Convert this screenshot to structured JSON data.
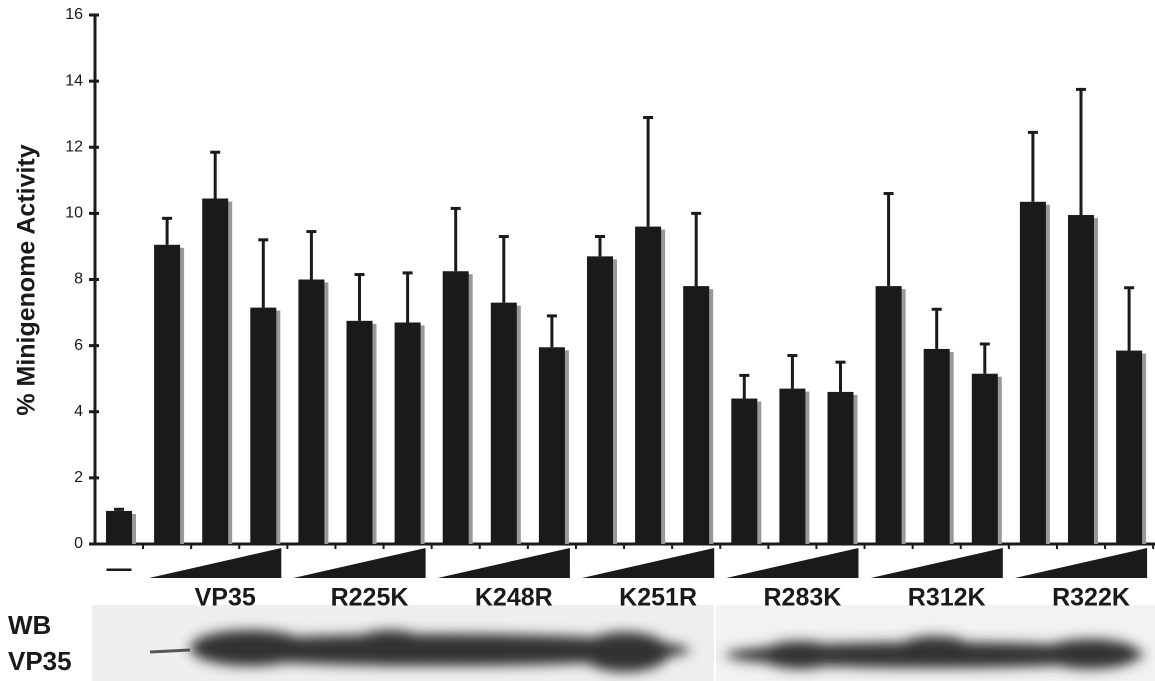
{
  "chart_data": {
    "type": "bar",
    "y_label": "% Minigenome Activity",
    "categories": [
      "—",
      null,
      null,
      null,
      null,
      null,
      null,
      null,
      null,
      null,
      null,
      null,
      null,
      null,
      null,
      null,
      null,
      null,
      null,
      null,
      null,
      null
    ],
    "groups": [
      "VP35",
      "R225K",
      "K248R",
      "K251R",
      "R283K",
      "R312K",
      "R322K"
    ],
    "values": [
      1.0,
      9.05,
      10.45,
      7.15,
      8.0,
      6.75,
      6.7,
      8.25,
      7.3,
      5.95,
      8.7,
      9.6,
      7.8,
      4.4,
      4.7,
      4.6,
      7.8,
      5.9,
      5.15,
      10.35,
      9.95,
      5.85
    ],
    "errors": [
      0.05,
      0.8,
      1.4,
      2.05,
      1.45,
      1.4,
      1.5,
      1.9,
      2.0,
      0.95,
      0.6,
      3.3,
      2.2,
      0.7,
      1.0,
      0.9,
      2.8,
      1.2,
      0.9,
      2.1,
      3.8,
      1.9
    ],
    "color": "#1a1a1a",
    "shadow_color": "#999999",
    "ylim": [
      0,
      16
    ],
    "yticks": [
      0,
      2,
      4,
      6,
      8,
      10,
      12,
      14,
      16
    ],
    "blot_label": [
      "WB",
      "VP35"
    ]
  }
}
